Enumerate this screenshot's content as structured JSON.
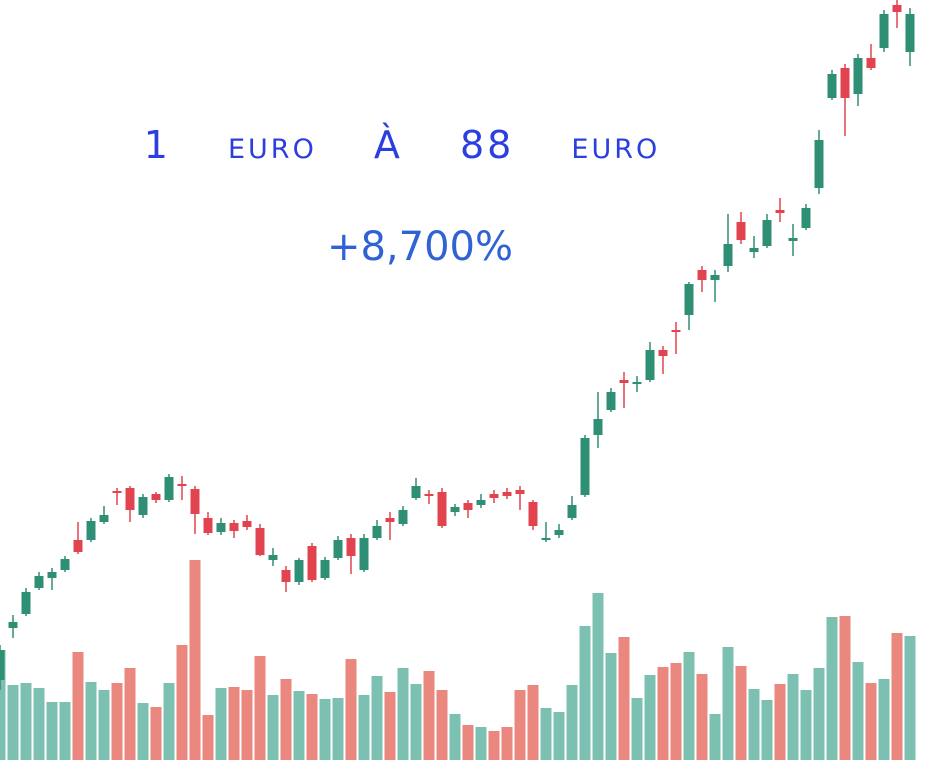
{
  "chart_data": {
    "type": "candlestick",
    "title": "1 euro À 88 euro",
    "subtitle": "+8,700%",
    "open": [
      80,
      132,
      146,
      172,
      182,
      190,
      220,
      220,
      238,
      269,
      272,
      245,
      266,
      260,
      276,
      271,
      242,
      228,
      237,
      239,
      232,
      200,
      190,
      178,
      214,
      182,
      202,
      222,
      190,
      222,
      242,
      236,
      262,
      266,
      268,
      248,
      257,
      255,
      266,
      268,
      270,
      258,
      220,
      225,
      242,
      265,
      325,
      350,
      380,
      376,
      380,
      410,
      430,
      445,
      490,
      480,
      494,
      538,
      508,
      514,
      550,
      519,
      532,
      572,
      662,
      692,
      666,
      702,
      712,
      755,
      708
    ],
    "high": [
      115,
      145,
      172,
      188,
      192,
      204,
      238,
      242,
      254,
      272,
      274,
      266,
      268,
      286,
      284,
      274,
      248,
      242,
      240,
      245,
      236,
      212,
      194,
      202,
      217,
      203,
      224,
      226,
      226,
      240,
      248,
      254,
      282,
      270,
      272,
      256,
      260,
      266,
      270,
      272,
      274,
      260,
      238,
      236,
      264,
      325,
      368,
      372,
      388,
      384,
      418,
      414,
      438,
      478,
      494,
      490,
      546,
      548,
      524,
      546,
      562,
      536,
      556,
      630,
      690,
      696,
      706,
      716,
      750,
      760,
      752
    ],
    "low": [
      70,
      122,
      144,
      170,
      170,
      188,
      206,
      218,
      236,
      255,
      238,
      242,
      257,
      258,
      260,
      226,
      225,
      225,
      222,
      230,
      204,
      194,
      168,
      175,
      178,
      180,
      200,
      186,
      188,
      220,
      220,
      234,
      260,
      256,
      232,
      244,
      242,
      252,
      257,
      261,
      250,
      230,
      218,
      222,
      240,
      263,
      312,
      348,
      352,
      368,
      378,
      386,
      406,
      430,
      468,
      458,
      488,
      516,
      502,
      512,
      538,
      504,
      530,
      566,
      660,
      624,
      654,
      690,
      708,
      732,
      694
    ],
    "close": [
      110,
      138,
      168,
      184,
      188,
      201,
      208,
      239,
      245,
      267,
      250,
      263,
      260,
      283,
      274,
      246,
      227,
      237,
      229,
      233,
      205,
      205,
      178,
      200,
      180,
      200,
      220,
      204,
      222,
      234,
      238,
      250,
      274,
      264,
      234,
      253,
      250,
      260,
      262,
      264,
      266,
      234,
      222,
      230,
      255,
      322,
      341,
      368,
      377,
      378,
      410,
      404,
      428,
      476,
      480,
      485,
      516,
      520,
      512,
      540,
      547,
      522,
      552,
      620,
      686,
      662,
      702,
      692,
      746,
      748,
      746
    ],
    "volume": [
      110,
      75,
      77,
      72,
      58,
      58,
      108,
      78,
      70,
      77,
      92,
      57,
      53,
      77,
      115,
      200,
      45,
      72,
      73,
      70,
      104,
      65,
      81,
      69,
      66,
      61,
      62,
      101,
      65,
      84,
      68,
      92,
      76,
      89,
      70,
      46,
      35,
      33,
      29,
      33,
      70,
      75,
      52,
      48,
      75,
      134,
      167,
      107,
      123,
      62,
      85,
      93,
      97,
      108,
      86,
      46,
      113,
      94,
      71,
      60,
      76,
      86,
      70,
      92,
      143,
      144,
      98,
      77,
      81,
      127,
      124
    ],
    "ylim": [
      0,
      760
    ],
    "y2lim": [
      0,
      760
    ],
    "up_color": "#2f8f74",
    "down_color": "#e2444f",
    "volume_up_color": "#7cc0b2",
    "volume_down_color": "#ea877f"
  }
}
